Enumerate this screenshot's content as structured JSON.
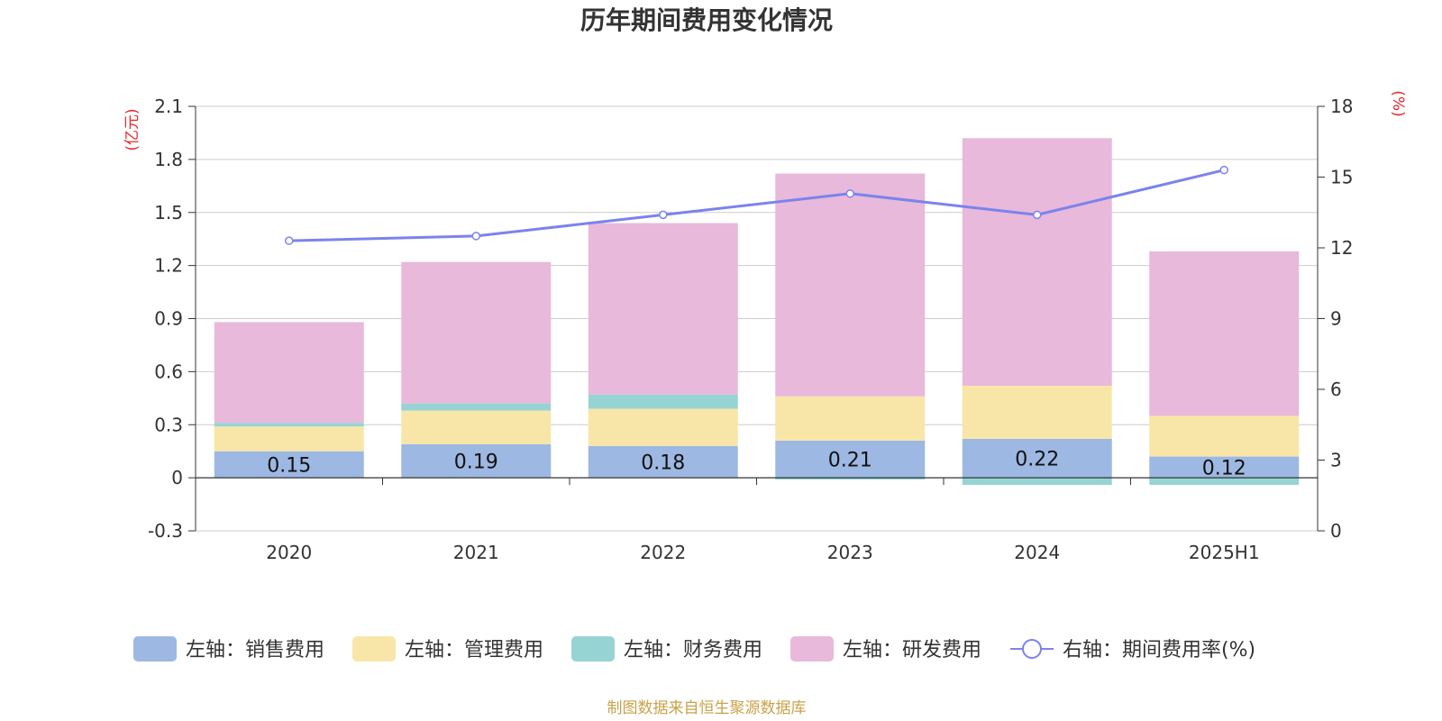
{
  "chart_data": {
    "type": "bar",
    "stacked": true,
    "title": "历年期间费用变化情况",
    "categories": [
      "2020",
      "2021",
      "2022",
      "2023",
      "2024",
      "2025H1"
    ],
    "left_axis": {
      "unit_label": "(亿元)",
      "range": [
        -0.3,
        2.1
      ],
      "ticks": [
        "-0.3",
        "0",
        "0.3",
        "0.6",
        "0.9",
        "1.2",
        "1.5",
        "1.8",
        "2.1"
      ]
    },
    "right_axis": {
      "unit_label": "(%)",
      "range": [
        0,
        18
      ],
      "ticks": [
        "0",
        "3",
        "6",
        "9",
        "12",
        "15",
        "18"
      ]
    },
    "series": [
      {
        "name": "左轴：销售费用",
        "color": "#9db8e2",
        "values": [
          0.15,
          0.19,
          0.18,
          0.21,
          0.22,
          0.12
        ],
        "labels": [
          "0.15",
          "0.19",
          "0.18",
          "0.21",
          "0.22",
          "0.12"
        ]
      },
      {
        "name": "左轴：管理费用",
        "color": "#f8e6a8",
        "values": [
          0.14,
          0.19,
          0.21,
          0.25,
          0.3,
          0.23
        ]
      },
      {
        "name": "左轴：财务费用",
        "color": "#96d4d4",
        "values": [
          0.02,
          0.04,
          0.08,
          -0.01,
          -0.04,
          -0.04
        ]
      },
      {
        "name": "左轴：研发费用",
        "color": "#e8b9da",
        "values": [
          0.57,
          0.8,
          0.97,
          1.26,
          1.4,
          0.93
        ]
      }
    ],
    "line_series": {
      "name": "右轴：期间费用率(%)",
      "color": "#7b83ec",
      "values": [
        12.3,
        12.5,
        13.4,
        14.3,
        13.4,
        15.3
      ]
    },
    "grid": true,
    "legend_position": "bottom"
  },
  "source_note": "制图数据来自恒生聚源数据库"
}
